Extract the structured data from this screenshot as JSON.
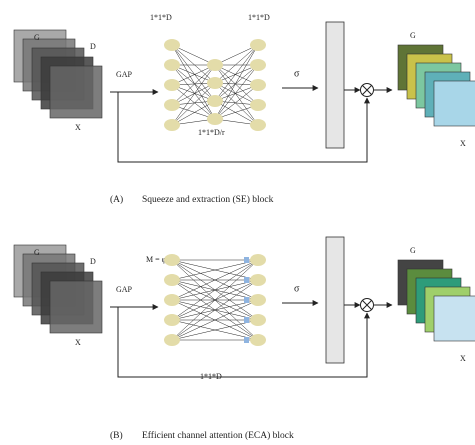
{
  "panels": [
    {
      "input_g": "G",
      "input_d": "D",
      "input_x": "X",
      "gap": "GAP",
      "net_labels": [
        "1*1*D",
        "1*1*D",
        "1*1*D/r"
      ],
      "sigma": "σ",
      "output_g": "G",
      "output_x": "X",
      "tag": "(A)",
      "caption": "Squeeze and extraction (SE) block"
    },
    {
      "input_g": "G",
      "input_d": "D",
      "input_x": "X",
      "gap": "GAP",
      "net_labels": [
        "M = φ (D)",
        "1*1*D"
      ],
      "sigma": "σ",
      "output_g": "G",
      "output_x": "X",
      "tag": "(B)",
      "caption": "Efficient channel attention (ECA) block"
    }
  ]
}
